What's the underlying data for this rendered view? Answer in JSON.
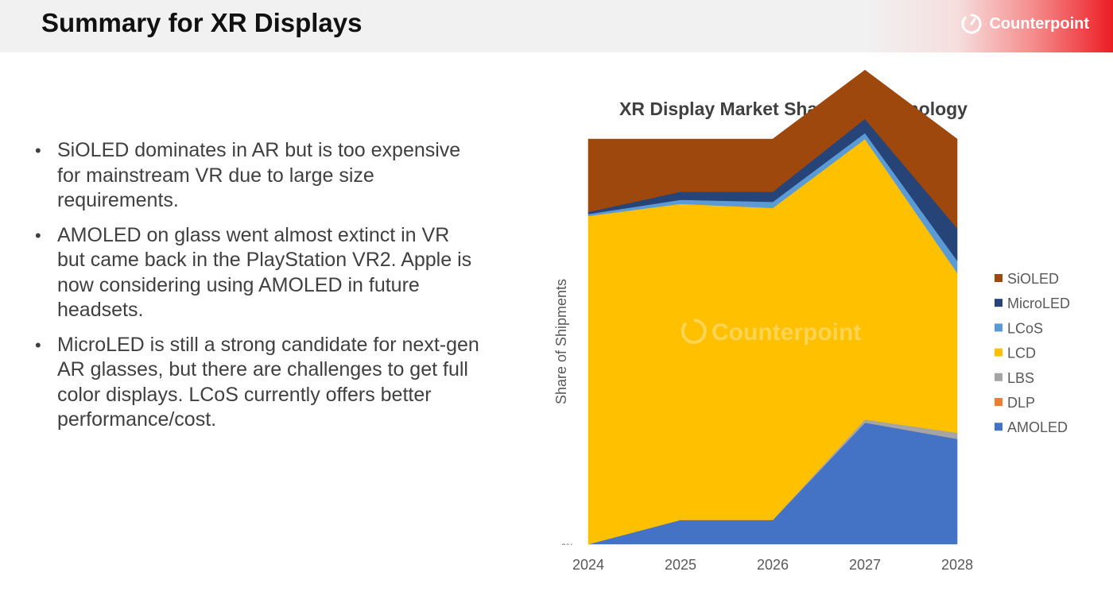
{
  "header": {
    "title": "Summary for XR Displays",
    "brand": "Counterpoint",
    "brand_icon": "counterpoint-logo-icon"
  },
  "bullets": [
    "SiOLED dominates in AR but is too expensive for mainstream VR due to large size requirements.",
    "AMOLED on glass went almost extinct in VR but came back in the PlayStation VR2. Apple is now considering using AMOLED in future headsets.",
    "MicroLED is still a strong candidate for next-gen AR glasses, but there are challenges to get full color displays. LCoS currently offers better performance/cost."
  ],
  "chart_data": {
    "type": "area",
    "stacked": true,
    "normalized": true,
    "title": "XR Display Market Share by Technology",
    "xlabel": "",
    "ylabel": "Share of Shipments",
    "y_tick_label": "0%",
    "categories": [
      "2024",
      "2025",
      "2026",
      "2027",
      "2028"
    ],
    "ylim": [
      0,
      100
    ],
    "legend_position": "right",
    "watermark": "Counterpoint",
    "series": [
      {
        "name": "AMOLED",
        "color": "#4472c4",
        "values": [
          0,
          6,
          6,
          30,
          26
        ]
      },
      {
        "name": "DLP",
        "color": "#ed7d31",
        "values": [
          0,
          0,
          0,
          0,
          0
        ]
      },
      {
        "name": "LBS",
        "color": "#a5a5a5",
        "values": [
          0,
          0,
          0,
          0.8,
          1.5
        ]
      },
      {
        "name": "LCD",
        "color": "#ffc000",
        "values": [
          81,
          78,
          77,
          69.2,
          39.5
        ]
      },
      {
        "name": "LCoS",
        "color": "#5b9bd5",
        "values": [
          0.5,
          1,
          1.5,
          1.5,
          3
        ]
      },
      {
        "name": "MicroLED",
        "color": "#264478",
        "values": [
          0.5,
          2,
          2.5,
          3.5,
          8
        ]
      },
      {
        "name": "SiOLED",
        "color": "#9e480e",
        "values": [
          18,
          13,
          13,
          12,
          22
        ]
      }
    ],
    "legend_order": [
      "SiOLED",
      "MicroLED",
      "LCoS",
      "LCD",
      "LBS",
      "DLP",
      "AMOLED"
    ]
  }
}
